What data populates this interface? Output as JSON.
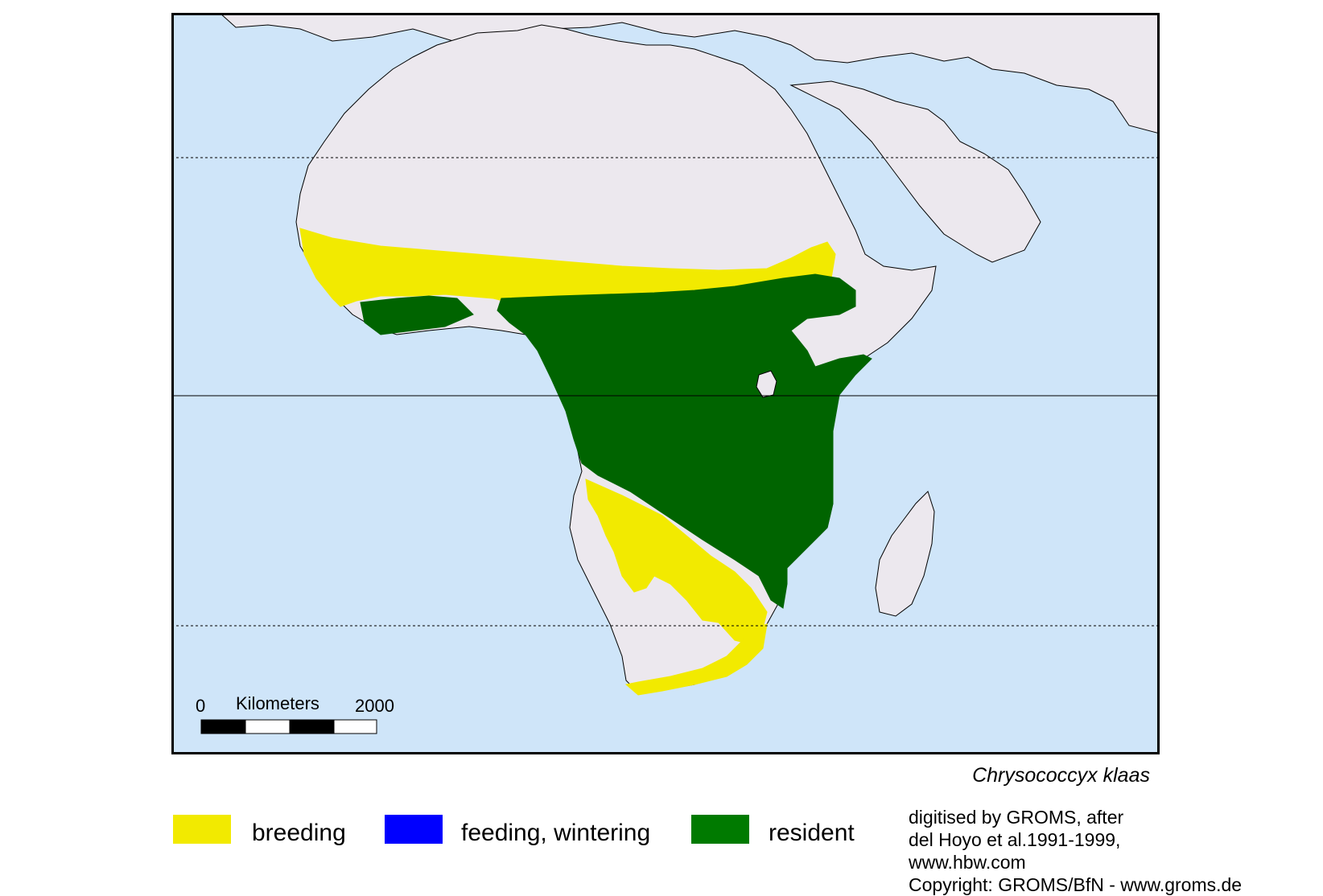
{
  "map": {
    "colors": {
      "ocean": "#cfe5f9",
      "land": "#ece8ee",
      "breeding": "#f2ea00",
      "feeding_wintering": "#0000ff",
      "resident": "#006400",
      "border": "#000000"
    },
    "scale_bar": {
      "start_label": "0",
      "unit_label": "Kilometers",
      "end_label": "2000"
    }
  },
  "species_name": "Chrysococcyx klaas",
  "legend": [
    {
      "label": "breeding",
      "color": "#f2ea00"
    },
    {
      "label": "feeding, wintering",
      "color": "#0000ff"
    },
    {
      "label": "resident",
      "color": "#006400"
    }
  ],
  "credits": [
    "digitised by GROMS, after",
    "del Hoyo et al.1991-1999,",
    "www.hbw.com",
    "Copyright: GROMS/BfN - www.groms.de"
  ]
}
